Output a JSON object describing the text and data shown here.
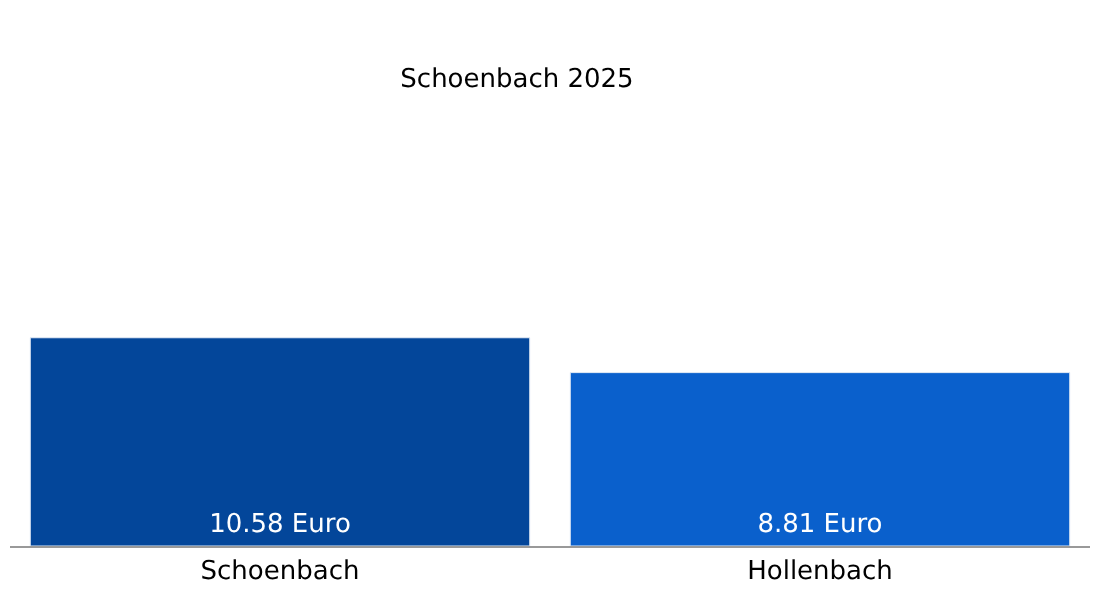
{
  "chart_data": {
    "type": "bar",
    "title": "Schoenbach 2025",
    "categories": [
      "Schoenbach",
      "Hollenbach"
    ],
    "values": [
      10.58,
      8.81
    ],
    "colors": [
      "#03469a",
      "#0a60cc"
    ],
    "value_labels": [
      "10.58 Euro",
      "8.81 Euro"
    ],
    "legend": false
  }
}
